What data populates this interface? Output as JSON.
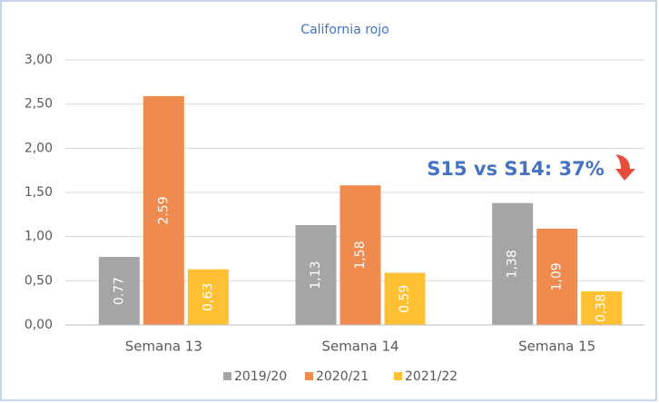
{
  "chart_data": {
    "type": "bar",
    "title": "California rojo",
    "annotation": "S15 vs S14: 37%",
    "categories": [
      "Semana 13",
      "Semana 14",
      "Semana 15"
    ],
    "series": [
      {
        "name": "2019/20",
        "color": "#a5a5a5",
        "values": [
          0.77,
          1.13,
          1.38
        ],
        "value_labels": [
          "0.77",
          "1,13",
          "1,38"
        ]
      },
      {
        "name": "2020/21",
        "color": "#f08b4f",
        "values": [
          2.59,
          1.58,
          1.09
        ],
        "value_labels": [
          "2.59",
          "1,58",
          "1,09"
        ]
      },
      {
        "name": "2021/22",
        "color": "#ffc133",
        "values": [
          0.63,
          0.59,
          0.38
        ],
        "value_labels": [
          "0,63",
          "0.59",
          "0,38"
        ]
      }
    ],
    "ylim": [
      0,
      3
    ],
    "yticks": [
      {
        "value": 0,
        "label": "0,00"
      },
      {
        "value": 0.5,
        "label": "0,50"
      },
      {
        "value": 1,
        "label": "1,00"
      },
      {
        "value": 1.5,
        "label": "1,50"
      },
      {
        "value": 2,
        "label": "2,00"
      },
      {
        "value": 2.5,
        "label": "2,50"
      },
      {
        "value": 3,
        "label": "3,00"
      }
    ],
    "grid": true,
    "legend": "bottom"
  }
}
